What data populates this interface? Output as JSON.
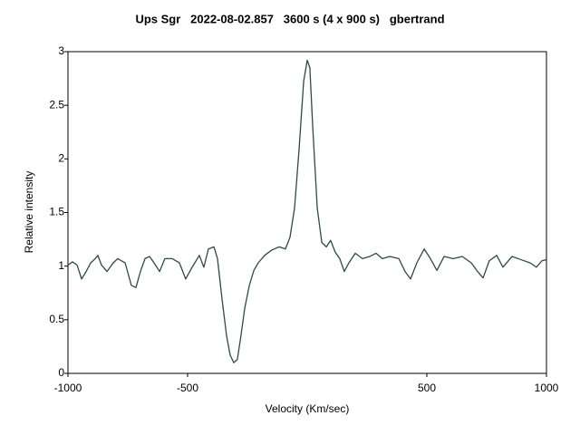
{
  "chart_data": {
    "type": "line",
    "title": "Ups Sgr   2022-08-02.857   3600 s (4 x 900 s)   gbertrand",
    "xlabel": "Velocity (Km/sec)",
    "ylabel": "Relative intensity",
    "x": [
      -1000,
      -981,
      -962,
      -943,
      -924,
      -905,
      -886,
      -875,
      -860,
      -837,
      -811,
      -792,
      -761,
      -735,
      -716,
      -697,
      -678,
      -659,
      -640,
      -617,
      -595,
      -564,
      -534,
      -508,
      -481,
      -451,
      -432,
      -413,
      -390,
      -375,
      -356,
      -337,
      -322,
      -307,
      -292,
      -277,
      -261,
      -242,
      -223,
      -205,
      -178,
      -148,
      -117,
      -91,
      -72,
      -53,
      -34,
      -15,
      0,
      11,
      23,
      42,
      61,
      80,
      98,
      117,
      136,
      155,
      174,
      201,
      231,
      261,
      288,
      314,
      345,
      383,
      409,
      432,
      458,
      489,
      515,
      542,
      572,
      610,
      648,
      686,
      712,
      735,
      761,
      792,
      818,
      856,
      894,
      932,
      958,
      981,
      1000
    ],
    "series": [
      {
        "name": "Relative intensity",
        "color": "#2f4a48",
        "values": [
          1.01,
          1.04,
          1.01,
          0.88,
          0.95,
          1.03,
          1.07,
          1.1,
          1.01,
          0.95,
          1.03,
          1.07,
          1.03,
          0.82,
          0.8,
          0.95,
          1.07,
          1.09,
          1.03,
          0.95,
          1.07,
          1.07,
          1.03,
          0.88,
          0.99,
          1.1,
          0.99,
          1.16,
          1.18,
          1.07,
          0.69,
          0.35,
          0.17,
          0.1,
          0.13,
          0.35,
          0.61,
          0.82,
          0.96,
          1.03,
          1.1,
          1.15,
          1.18,
          1.16,
          1.27,
          1.54,
          2.09,
          2.72,
          2.92,
          2.85,
          2.3,
          1.54,
          1.22,
          1.18,
          1.24,
          1.13,
          1.07,
          0.95,
          1.03,
          1.12,
          1.07,
          1.09,
          1.12,
          1.07,
          1.09,
          1.07,
          0.95,
          0.88,
          1.03,
          1.16,
          1.07,
          0.96,
          1.09,
          1.07,
          1.09,
          1.03,
          0.95,
          0.89,
          1.05,
          1.1,
          0.99,
          1.09,
          1.06,
          1.03,
          0.99,
          1.05,
          1.06
        ]
      }
    ],
    "xlim": [
      -1000,
      1000
    ],
    "xticks": [
      -1000,
      -500,
      500,
      1000
    ],
    "ylim": [
      0,
      3
    ],
    "yticks": [
      0,
      0.5,
      1,
      1.5,
      2,
      2.5,
      3
    ],
    "grid": false
  }
}
